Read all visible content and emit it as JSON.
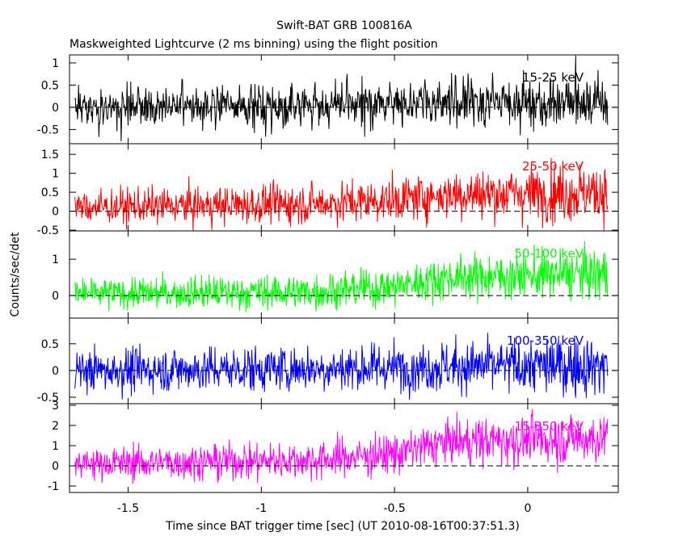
{
  "chart_data": {
    "type": "line",
    "title": "Swift-BAT GRB 100816A",
    "subtitle": "Maskweighted Lightcurve (2 ms binning) using the flight position",
    "xlabel": "Time since BAT trigger time [sec] (UT 2010-08-16T00:37:51.3)",
    "ylabel": "Counts/sec/det",
    "xlim": [
      -1.72,
      0.34
    ],
    "x_ticks": [
      -1.5,
      -1,
      -0.5,
      0
    ],
    "x_tick_labels": [
      "-1.5",
      "-1",
      "-0.5",
      "0"
    ],
    "data_x_range": [
      -1.7,
      0.3
    ],
    "bin_width": 0.002,
    "series": [
      {
        "name": "15-25 keV",
        "color": "#000000",
        "ylim": [
          -0.82,
          1.18
        ],
        "y_ticks": [
          -0.5,
          0,
          0.5,
          1
        ],
        "y_tick_labels": [
          "-0.5",
          "0",
          "0.5",
          "1"
        ],
        "trend": [
          [
            -1.7,
            0.0
          ],
          [
            -0.7,
            0.05
          ],
          [
            -0.4,
            0.12
          ],
          [
            0.3,
            0.15
          ]
        ],
        "noise_sigma": [
          [
            -1.7,
            0.22
          ],
          [
            -0.5,
            0.25
          ],
          [
            0.3,
            0.32
          ]
        ]
      },
      {
        "name": "25-50 keV",
        "color": "#ff0000",
        "ylim": [
          -0.52,
          1.78
        ],
        "y_ticks": [
          -0.5,
          0,
          0.5,
          1,
          1.5
        ],
        "y_tick_labels": [
          "-0.5",
          "0",
          "0.5",
          "1",
          "1.5"
        ],
        "trend": [
          [
            -1.7,
            0.1
          ],
          [
            -0.8,
            0.2
          ],
          [
            -0.5,
            0.3
          ],
          [
            -0.3,
            0.45
          ],
          [
            0.3,
            0.5
          ]
        ],
        "noise_sigma": [
          [
            -1.7,
            0.22
          ],
          [
            -0.5,
            0.28
          ],
          [
            0.3,
            0.4
          ]
        ]
      },
      {
        "name": "50-100 keV",
        "color": "#00ff00",
        "ylim": [
          -0.62,
          1.78
        ],
        "y_ticks": [
          0,
          1
        ],
        "y_tick_labels": [
          "0",
          "1"
        ],
        "trend": [
          [
            -1.7,
            0.05
          ],
          [
            -0.8,
            0.1
          ],
          [
            -0.5,
            0.25
          ],
          [
            -0.3,
            0.5
          ],
          [
            0.3,
            0.6
          ]
        ],
        "noise_sigma": [
          [
            -1.7,
            0.2
          ],
          [
            -0.5,
            0.26
          ],
          [
            0.3,
            0.35
          ]
        ]
      },
      {
        "name": "100-350 keV",
        "color": "#0000ff",
        "ylim": [
          -0.62,
          0.98
        ],
        "y_ticks": [
          -0.5,
          0,
          0.5
        ],
        "y_tick_labels": [
          "-0.5",
          "0",
          "0.5"
        ],
        "trend": [
          [
            -1.7,
            0.0
          ],
          [
            -0.6,
            0.05
          ],
          [
            -0.2,
            0.08
          ],
          [
            0.3,
            0.1
          ]
        ],
        "noise_sigma": [
          [
            -1.7,
            0.2
          ],
          [
            -0.5,
            0.22
          ],
          [
            0.3,
            0.28
          ]
        ]
      },
      {
        "name": "15-350 keV",
        "color": "#ff00ff",
        "ylim": [
          -1.32,
          3.08
        ],
        "y_ticks": [
          -1,
          0,
          1,
          2,
          3
        ],
        "y_tick_labels": [
          "-1",
          "0",
          "1",
          "2",
          "3"
        ],
        "trend": [
          [
            -1.7,
            0.1
          ],
          [
            -0.8,
            0.3
          ],
          [
            -0.5,
            0.6
          ],
          [
            -0.3,
            1.2
          ],
          [
            0.3,
            1.4
          ]
        ],
        "noise_sigma": [
          [
            -1.7,
            0.4
          ],
          [
            -0.5,
            0.5
          ],
          [
            0.3,
            0.65
          ]
        ]
      }
    ],
    "grid": false,
    "zero_line": "dashed"
  }
}
